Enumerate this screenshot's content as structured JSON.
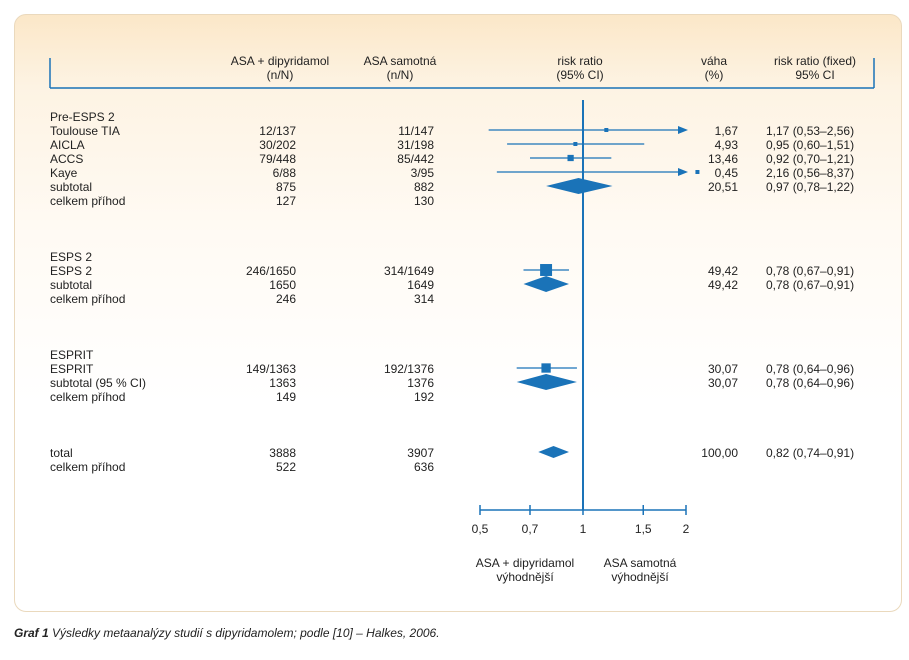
{
  "header": {
    "col_asa_dip": [
      "ASA + dipyridamol",
      "(n/N)"
    ],
    "col_asa": [
      "ASA samotná",
      "(n/N)"
    ],
    "col_rr": [
      "risk ratio",
      "(95% CI)"
    ],
    "col_weight": [
      "váha",
      "(%)"
    ],
    "col_rr_fixed": [
      "risk ratio (fixed)",
      "95% CI"
    ]
  },
  "rows": [
    {
      "label": "Pre-ESPS 2",
      "a": "",
      "b": "",
      "w": "",
      "ci": ""
    },
    {
      "label": "Toulouse TIA",
      "a": "12/137",
      "b": "11/147",
      "w": "1,67",
      "ci": "1,17 (0,53–2,56)"
    },
    {
      "label": "AICLA",
      "a": "30/202",
      "b": "31/198",
      "w": "4,93",
      "ci": "0,95 (0,60–1,51)"
    },
    {
      "label": "ACCS",
      "a": "79/448",
      "b": "85/442",
      "w": "13,46",
      "ci": "0,92 (0,70–1,21)"
    },
    {
      "label": "Kaye",
      "a": "6/88",
      "b": "3/95",
      "w": "0,45",
      "ci": "2,16 (0,56–8,37)"
    },
    {
      "label": "subtotal",
      "a": "875",
      "b": "882",
      "w": "20,51",
      "ci": "0,97 (0,78–1,22)"
    },
    {
      "label": "celkem příhod",
      "a": "127",
      "b": "130",
      "w": "",
      "ci": ""
    },
    {
      "label": "ESPS 2",
      "a": "",
      "b": "",
      "w": "",
      "ci": ""
    },
    {
      "label": "ESPS 2",
      "a": "246/1650",
      "b": "314/1649",
      "w": "49,42",
      "ci": "0,78 (0,67–0,91)"
    },
    {
      "label": "subtotal",
      "a": "1650",
      "b": "1649",
      "w": "49,42",
      "ci": "0,78 (0,67–0,91)"
    },
    {
      "label": "celkem příhod",
      "a": "246",
      "b": "314",
      "w": "",
      "ci": ""
    },
    {
      "label": "ESPRIT",
      "a": "",
      "b": "",
      "w": "",
      "ci": ""
    },
    {
      "label": "ESPRIT",
      "a": "149/1363",
      "b": "192/1376",
      "w": "30,07",
      "ci": "0,78 (0,64–0,96)"
    },
    {
      "label": "subtotal (95 % CI)",
      "a": "1363",
      "b": "1376",
      "w": "30,07",
      "ci": "0,78 (0,64–0,96)"
    },
    {
      "label": "celkem příhod",
      "a": "149",
      "b": "192",
      "w": "",
      "ci": ""
    },
    {
      "label": "total",
      "a": "3888",
      "b": "3907",
      "w": "100,00",
      "ci": "0,82 (0,74–0,91)"
    },
    {
      "label": "celkem příhod",
      "a": "522",
      "b": "636",
      "w": "",
      "ci": ""
    }
  ],
  "axis_ticks": [
    "0,5",
    "0,7",
    "1",
    "1,5",
    "2"
  ],
  "axis_note_left": [
    "ASA + dipyridamol",
    "výhodnější"
  ],
  "axis_note_right": [
    "ASA samotná",
    "výhodnější"
  ],
  "caption_bold": "Graf 1",
  "caption_text": "Výsledky metaanalýzy studií s dipyridamolem; podle [10] – Halkes, 2006.",
  "colors": {
    "accent": "#1a73b8",
    "text": "#222222"
  },
  "chart_data": {
    "type": "forest",
    "scale": "log",
    "xlim": [
      0.5,
      2
    ],
    "ticks": [
      0.5,
      0.7,
      1,
      1.5,
      2
    ],
    "null_line": 1,
    "studies": [
      {
        "name": "Toulouse TIA",
        "rr": 1.17,
        "lo": 0.53,
        "hi": 2.56,
        "weight": 1.67,
        "truncated": "right"
      },
      {
        "name": "AICLA",
        "rr": 0.95,
        "lo": 0.6,
        "hi": 1.51,
        "weight": 4.93
      },
      {
        "name": "ACCS",
        "rr": 0.92,
        "lo": 0.7,
        "hi": 1.21,
        "weight": 13.46
      },
      {
        "name": "Kaye",
        "rr": 2.16,
        "lo": 0.56,
        "hi": 8.37,
        "weight": 0.45,
        "truncated": "right"
      },
      {
        "name": "ESPS 2",
        "rr": 0.78,
        "lo": 0.67,
        "hi": 0.91,
        "weight": 49.42
      },
      {
        "name": "ESPRIT",
        "rr": 0.78,
        "lo": 0.64,
        "hi": 0.96,
        "weight": 30.07
      }
    ],
    "summaries": [
      {
        "name": "subtotal Pre-ESPS 2",
        "rr": 0.97,
        "lo": 0.78,
        "hi": 1.22
      },
      {
        "name": "subtotal ESPS 2",
        "rr": 0.78,
        "lo": 0.67,
        "hi": 0.91
      },
      {
        "name": "subtotal ESPRIT",
        "rr": 0.78,
        "lo": 0.64,
        "hi": 0.96
      },
      {
        "name": "total",
        "rr": 0.82,
        "lo": 0.74,
        "hi": 0.91
      }
    ]
  }
}
